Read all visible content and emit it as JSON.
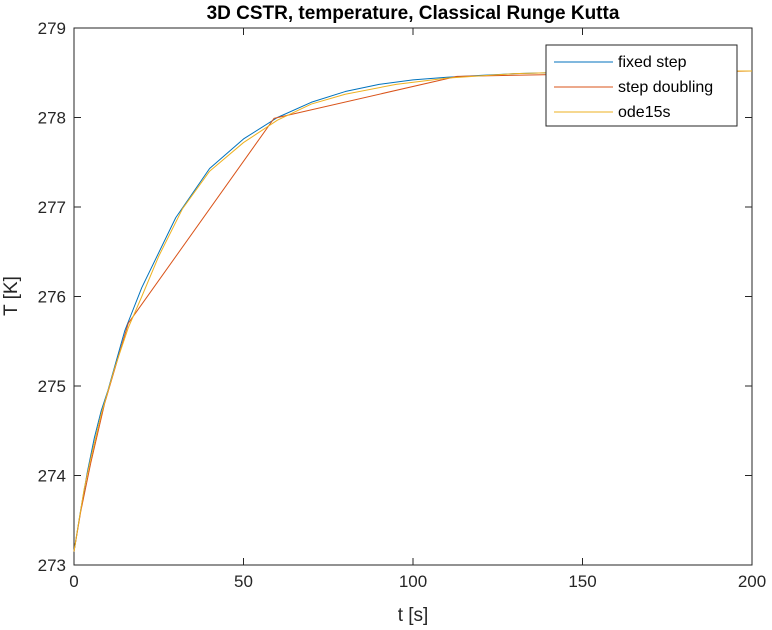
{
  "chart_data": {
    "type": "line",
    "title": "3D CSTR, temperature, Classical Runge Kutta",
    "xlabel": "t [s]",
    "ylabel": "T [K]",
    "xlim": [
      0,
      200
    ],
    "ylim": [
      273,
      279
    ],
    "xticks": [
      0,
      50,
      100,
      150,
      200
    ],
    "yticks": [
      273,
      274,
      275,
      276,
      277,
      278,
      279
    ],
    "grid": false,
    "legend_position": "top-right",
    "series": [
      {
        "name": "fixed step",
        "color": "#0072BD",
        "x": [
          0,
          2,
          4,
          6,
          8,
          10,
          15,
          20,
          30,
          40,
          50,
          60,
          70,
          80,
          90,
          100,
          110,
          120,
          130,
          140,
          150,
          160,
          170,
          180,
          190,
          200
        ],
        "y": [
          273.15,
          273.62,
          274.05,
          274.42,
          274.72,
          274.95,
          275.62,
          276.1,
          276.88,
          277.43,
          277.76,
          278.0,
          278.17,
          278.29,
          278.37,
          278.42,
          278.45,
          278.47,
          278.49,
          278.5,
          278.51,
          278.51,
          278.52,
          278.52,
          278.52,
          278.52
        ]
      },
      {
        "name": "step doubling",
        "color": "#D95319",
        "x": [
          0,
          2,
          5,
          9,
          16,
          59,
          113,
          200
        ],
        "y": [
          273.15,
          273.6,
          274.15,
          274.8,
          275.7,
          277.99,
          278.46,
          278.52
        ]
      },
      {
        "name": "ode15s",
        "color": "#EDB120",
        "x": [
          0,
          1.5,
          3,
          5,
          8,
          12,
          16,
          20,
          25,
          32,
          40,
          50,
          60,
          70,
          80,
          95,
          110,
          130,
          150,
          175,
          200
        ],
        "y": [
          273.15,
          273.5,
          273.85,
          274.2,
          274.68,
          275.2,
          275.65,
          276.0,
          276.45,
          276.98,
          277.4,
          277.72,
          277.97,
          278.15,
          278.26,
          278.37,
          278.44,
          278.49,
          278.51,
          278.52,
          278.52
        ]
      }
    ]
  }
}
